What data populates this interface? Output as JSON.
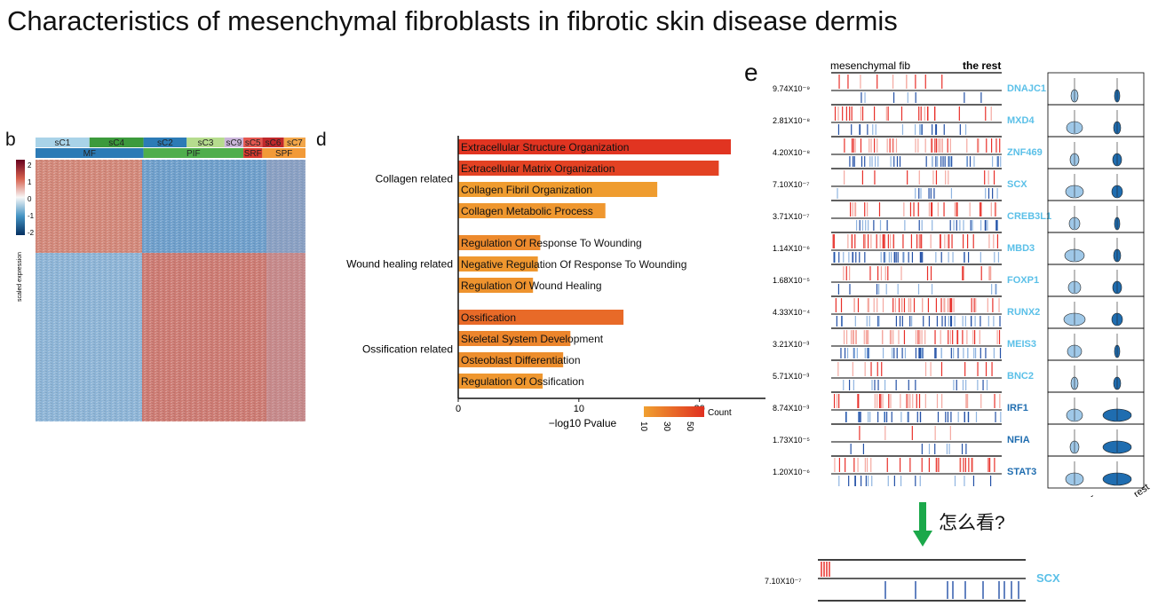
{
  "title": "Characteristics of mesenchymal fibroblasts in fibrotic skin disease dermis",
  "panel_labels": {
    "b": "b",
    "d": "d",
    "e": "e"
  },
  "heatmap": {
    "clusters": [
      {
        "label": "sC1",
        "color": "#a9d3e8",
        "span": 0.2
      },
      {
        "label": "sC4",
        "color": "#3c9a3c",
        "span": 0.2
      },
      {
        "label": "sC2",
        "color": "#2c7bb6",
        "span": 0.16
      },
      {
        "label": "sC3",
        "color": "#b6dc8e",
        "span": 0.14
      },
      {
        "label": "sC9",
        "color": "#c9b5d9",
        "span": 0.07
      },
      {
        "label": "sC5",
        "color": "#e4564f",
        "span": 0.07
      },
      {
        "label": "sC6",
        "color": "#c0282b",
        "span": 0.08
      },
      {
        "label": "sC7",
        "color": "#f2a649",
        "span": 0.08
      }
    ],
    "groups": [
      {
        "label": "MF",
        "color": "#2c7bb6",
        "span": 0.4
      },
      {
        "label": "PIF",
        "color": "#4fae4b",
        "span": 0.37
      },
      {
        "label": "SRF",
        "color": "#d63a2c",
        "span": 0.07
      },
      {
        "label": "SPF",
        "color": "#f29a38",
        "span": 0.16
      }
    ],
    "legend_ticks": [
      "2",
      "1",
      "0",
      "-1",
      "-2"
    ],
    "legend_label": "scaled expression"
  },
  "chart_data": {
    "type": "bar",
    "orientation": "horizontal",
    "xlabel": "−log10 Pvalue",
    "xlim": [
      0,
      24
    ],
    "xticks": [
      0,
      10,
      20
    ],
    "legend": {
      "title": "Count",
      "ticks": [
        10,
        30,
        50
      ],
      "low_color": "#f0a030",
      "high_color": "#e03020"
    },
    "groups": [
      {
        "name": "Collagen related",
        "terms": [
          {
            "term": "Extracellular Structure Organization",
            "value": 22.6,
            "count": 58
          },
          {
            "term": "Extracellular Matrix Organization",
            "value": 21.6,
            "count": 52
          },
          {
            "term": "Collagen Fibril Organization",
            "value": 16.5,
            "count": 12
          },
          {
            "term": "Collagen Metabolic Process",
            "value": 12.2,
            "count": 14
          }
        ]
      },
      {
        "name": "Wound healing related",
        "terms": [
          {
            "term": "Regulation Of Response To Wounding",
            "value": 6.8,
            "count": 20
          },
          {
            "term": "Negative Regulation Of Response To Wounding",
            "value": 6.6,
            "count": 14
          },
          {
            "term": "Regulation Of Wound Healing",
            "value": 6.2,
            "count": 16
          }
        ]
      },
      {
        "name": "Ossification related",
        "terms": [
          {
            "term": "Ossification",
            "value": 13.7,
            "count": 34
          },
          {
            "term": "Skeletal System Development",
            "value": 9.3,
            "count": 22
          },
          {
            "term": "Osteoblast Differentiation",
            "value": 8.7,
            "count": 18
          },
          {
            "term": "Regulation Of Ossification",
            "value": 7.0,
            "count": 14
          }
        ]
      }
    ]
  },
  "tf_panel": {
    "header_left": "mesenchymal fib",
    "header_right": "the rest",
    "violin_x_labels": [
      "MF",
      "the_rest"
    ],
    "genes": [
      {
        "gene": "DNAJC1",
        "pvalue": "9.74X10⁻⁹",
        "color": "#5bc0e8"
      },
      {
        "gene": "MXD4",
        "pvalue": "2.81X10⁻⁸",
        "color": "#5bc0e8"
      },
      {
        "gene": "ZNF469",
        "pvalue": "4.20X10⁻⁸",
        "color": "#5bc0e8"
      },
      {
        "gene": "SCX",
        "pvalue": "7.10X10⁻⁷",
        "color": "#5bc0e8"
      },
      {
        "gene": "CREB3L1",
        "pvalue": "3.71X10⁻⁷",
        "color": "#5bc0e8"
      },
      {
        "gene": "MBD3",
        "pvalue": "1.14X10⁻⁶",
        "color": "#5bc0e8"
      },
      {
        "gene": "FOXP1",
        "pvalue": "1.68X10⁻⁵",
        "color": "#5bc0e8"
      },
      {
        "gene": "RUNX2",
        "pvalue": "4.33X10⁻⁴",
        "color": "#5bc0e8"
      },
      {
        "gene": "MEIS3",
        "pvalue": "3.21X10⁻³",
        "color": "#5bc0e8"
      },
      {
        "gene": "BNC2",
        "pvalue": "5.71X10⁻³",
        "color": "#5bc0e8"
      },
      {
        "gene": "IRF1",
        "pvalue": "8.74X10⁻³",
        "color": "#1f6db0"
      },
      {
        "gene": "NFIA",
        "pvalue": "1.73X10⁻⁵",
        "color": "#1f6db0"
      },
      {
        "gene": "STAT3",
        "pvalue": "1.20X10⁻⁶",
        "color": "#1f6db0"
      }
    ]
  },
  "annotation": {
    "text": "怎么看?",
    "arrow_color": "#1ba84a"
  },
  "zoom": {
    "gene": "SCX",
    "pvalue": "7.10X10⁻⁷",
    "color": "#5bc0e8"
  }
}
